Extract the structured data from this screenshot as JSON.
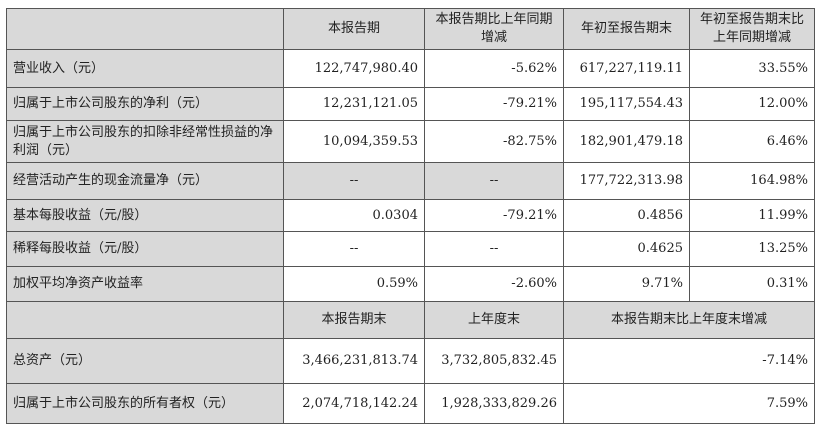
{
  "header1": [
    "",
    "本报告期",
    "本报告期比上年同期增减",
    "年初至报告期末",
    "年初至报告期末比上年同期增减"
  ],
  "rows1": [
    {
      "label": "营业收入（元）",
      "values": [
        "122,747,980.40",
        "-5.62%",
        "617,227,119.11",
        "33.55%"
      ]
    },
    {
      "label": "归属于上市公司股东的净利（元）",
      "values": [
        "12,231,121.05",
        "-79.21%",
        "195,117,554.43",
        "12.00%"
      ]
    },
    {
      "label": "归属于上市公司股东的扣除非经常性损益的净利润（元）",
      "values": [
        "10,094,359.53",
        "-82.75%",
        "182,901,479.18",
        "6.46%"
      ]
    },
    {
      "label": "经营活动产生的现金流量净（元）",
      "values": [
        "--",
        "--",
        "177,722,313.98",
        "164.98%"
      ]
    },
    {
      "label": "基本每股收益（元/股）",
      "values": [
        "0.0304",
        "-79.21%",
        "0.4856",
        "11.99%"
      ]
    },
    {
      "label": "稀释每股收益（元/股）",
      "values": [
        "--",
        "--",
        "0.4625",
        "13.25%"
      ]
    },
    {
      "label": "加权平均净资产收益率",
      "values": [
        "0.59%",
        "-2.60%",
        "9.71%",
        "0.31%"
      ]
    }
  ],
  "header2": [
    "",
    "本报告期末",
    "上年度末",
    "本报告期末比上年度末增减"
  ],
  "rows2": [
    {
      "label": "总资产（元）",
      "values": [
        "3,466,231,813.74",
        "3,732,805,832.45",
        "-7.14%"
      ]
    },
    {
      "label": "归属于上市公司股东的所有者权（元）",
      "values": [
        "2,074,718,142.24",
        "1,928,333,829.26",
        "7.59%"
      ]
    }
  ],
  "colors": {
    "header_fill": "#d9d9d9",
    "border": "#555555"
  }
}
